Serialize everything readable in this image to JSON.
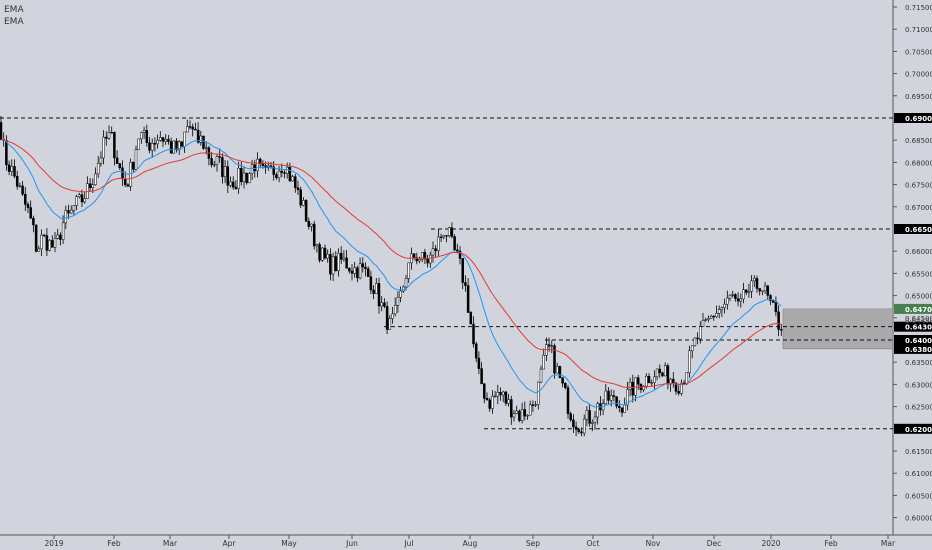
{
  "legend": {
    "ema_1": "EMA",
    "ema_2": "EMA"
  },
  "chart_data": {
    "type": "candlestick",
    "y_ticks": [
      "0.71500",
      "0.71000",
      "0.70500",
      "0.70000",
      "0.69500",
      "0.68500",
      "0.68000",
      "0.67500",
      "0.67000",
      "0.66000",
      "0.65500",
      "0.65000",
      "0.64500",
      "0.63500",
      "0.63000",
      "0.62500",
      "0.61500",
      "0.61000",
      "0.60500",
      "0.60000"
    ],
    "x_ticks": [
      "2019",
      "Feb",
      "Mar",
      "Apr",
      "May",
      "Jun",
      "Jul",
      "Aug",
      "Sep",
      "Oct",
      "Nov",
      "Dec",
      "2020",
      "Feb",
      "Mar"
    ],
    "ylim": [
      0.5975,
      0.7165
    ],
    "horizontal_levels": [
      {
        "value": 0.69,
        "label": "0.69000"
      },
      {
        "value": 0.665,
        "label": "0.66500"
      },
      {
        "value": 0.643,
        "label": "0.64300"
      },
      {
        "value": 0.64,
        "label": "0.64000"
      },
      {
        "value": 0.62,
        "label": "0.62000"
      }
    ],
    "zone": {
      "label_top": "0.64700",
      "label_bottom": "0.63800",
      "label_mid": "0.64450",
      "top": 0.647,
      "bottom": 0.638
    },
    "price_anchors": [
      [
        0,
        0.689
      ],
      [
        5,
        0.681
      ],
      [
        12,
        0.678
      ],
      [
        18,
        0.675
      ],
      [
        22,
        0.672
      ],
      [
        28,
        0.669
      ],
      [
        33,
        0.665
      ],
      [
        37,
        0.66
      ],
      [
        42,
        0.663
      ],
      [
        48,
        0.662
      ],
      [
        52,
        0.661
      ],
      [
        56,
        0.661
      ],
      [
        60,
        0.664
      ],
      [
        64,
        0.667
      ],
      [
        70,
        0.668
      ],
      [
        74,
        0.67
      ],
      [
        80,
        0.671
      ],
      [
        86,
        0.673
      ],
      [
        92,
        0.676
      ],
      [
        98,
        0.68
      ],
      [
        104,
        0.684
      ],
      [
        108,
        0.686
      ],
      [
        112,
        0.685
      ],
      [
        118,
        0.68
      ],
      [
        124,
        0.675
      ],
      [
        128,
        0.676
      ],
      [
        134,
        0.681
      ],
      [
        138,
        0.686
      ],
      [
        142,
        0.686
      ],
      [
        148,
        0.684
      ],
      [
        154,
        0.685
      ],
      [
        160,
        0.686
      ],
      [
        166,
        0.685
      ],
      [
        172,
        0.683
      ],
      [
        178,
        0.683
      ],
      [
        182,
        0.683
      ],
      [
        186,
        0.688
      ],
      [
        190,
        0.688
      ],
      [
        196,
        0.685
      ],
      [
        202,
        0.685
      ],
      [
        208,
        0.682
      ],
      [
        212,
        0.68
      ],
      [
        218,
        0.68
      ],
      [
        224,
        0.678
      ],
      [
        230,
        0.676
      ],
      [
        236,
        0.676
      ],
      [
        242,
        0.677
      ],
      [
        248,
        0.677
      ],
      [
        254,
        0.68
      ],
      [
        260,
        0.678
      ],
      [
        266,
        0.677
      ],
      [
        272,
        0.678
      ],
      [
        278,
        0.679
      ],
      [
        284,
        0.68
      ],
      [
        288,
        0.678
      ],
      [
        294,
        0.675
      ],
      [
        300,
        0.672
      ],
      [
        306,
        0.668
      ],
      [
        312,
        0.664
      ],
      [
        318,
        0.661
      ],
      [
        324,
        0.658
      ],
      [
        330,
        0.657
      ],
      [
        336,
        0.657
      ],
      [
        342,
        0.658
      ],
      [
        348,
        0.657
      ],
      [
        354,
        0.656
      ],
      [
        360,
        0.656
      ],
      [
        366,
        0.655
      ],
      [
        372,
        0.653
      ],
      [
        378,
        0.65
      ],
      [
        384,
        0.646
      ],
      [
        390,
        0.643
      ],
      [
        396,
        0.646
      ],
      [
        402,
        0.651
      ],
      [
        406,
        0.655
      ],
      [
        410,
        0.657
      ],
      [
        414,
        0.659
      ],
      [
        418,
        0.659
      ],
      [
        422,
        0.658
      ],
      [
        428,
        0.658
      ],
      [
        432,
        0.659
      ],
      [
        436,
        0.661
      ],
      [
        440,
        0.663
      ],
      [
        444,
        0.665
      ],
      [
        448,
        0.664
      ],
      [
        452,
        0.661
      ],
      [
        458,
        0.658
      ],
      [
        462,
        0.655
      ],
      [
        466,
        0.651
      ],
      [
        470,
        0.645
      ],
      [
        474,
        0.638
      ],
      [
        478,
        0.632
      ],
      [
        482,
        0.63
      ],
      [
        486,
        0.627
      ],
      [
        490,
        0.626
      ],
      [
        494,
        0.627
      ],
      [
        498,
        0.628
      ],
      [
        504,
        0.627
      ],
      [
        510,
        0.625
      ],
      [
        516,
        0.624
      ],
      [
        520,
        0.623
      ],
      [
        526,
        0.624
      ],
      [
        532,
        0.625
      ],
      [
        538,
        0.629
      ],
      [
        542,
        0.633
      ],
      [
        546,
        0.637
      ],
      [
        550,
        0.638
      ],
      [
        554,
        0.635
      ],
      [
        560,
        0.631
      ],
      [
        566,
        0.627
      ],
      [
        570,
        0.624
      ],
      [
        574,
        0.622
      ],
      [
        580,
        0.621
      ],
      [
        586,
        0.622
      ],
      [
        592,
        0.623
      ],
      [
        598,
        0.625
      ],
      [
        604,
        0.626
      ],
      [
        610,
        0.627
      ],
      [
        614,
        0.626
      ],
      [
        620,
        0.625
      ],
      [
        626,
        0.627
      ],
      [
        632,
        0.629
      ],
      [
        638,
        0.63
      ],
      [
        644,
        0.631
      ],
      [
        650,
        0.632
      ],
      [
        656,
        0.633
      ],
      [
        662,
        0.632
      ],
      [
        668,
        0.632
      ],
      [
        674,
        0.631
      ],
      [
        680,
        0.63
      ],
      [
        684,
        0.632
      ],
      [
        690,
        0.636
      ],
      [
        696,
        0.64
      ],
      [
        702,
        0.642
      ],
      [
        708,
        0.644
      ],
      [
        714,
        0.646
      ],
      [
        720,
        0.647
      ],
      [
        726,
        0.648
      ],
      [
        732,
        0.65
      ],
      [
        738,
        0.647
      ],
      [
        742,
        0.648
      ],
      [
        746,
        0.651
      ],
      [
        750,
        0.651
      ],
      [
        756,
        0.652
      ],
      [
        760,
        0.653
      ],
      [
        764,
        0.651
      ],
      [
        768,
        0.649
      ],
      [
        772,
        0.647
      ],
      [
        776,
        0.645
      ],
      [
        780,
        0.643
      ],
      [
        783,
        0.644
      ]
    ],
    "series": [
      {
        "color": "#2196f3"
      },
      {
        "color": "#e53935"
      }
    ]
  }
}
